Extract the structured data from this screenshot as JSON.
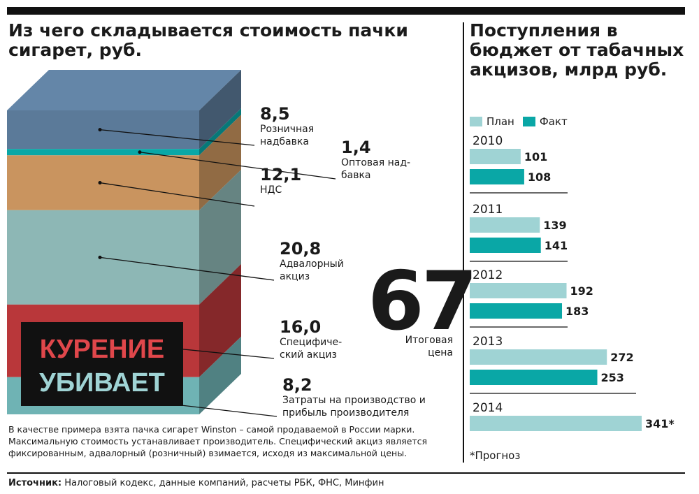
{
  "colors": {
    "plan": "#9fd3d4",
    "fact": "#0aa7a6",
    "text": "#1a1a1a"
  },
  "left": {
    "title": "Из чего складывается стоимость пачки сигарет, руб.",
    "warning_line1": "КУРЕНИЕ",
    "warning_line2": "УБИВАЕТ",
    "total_value": "67",
    "total_label": "Итоговая\nцена",
    "note": "В качестве примера взята пачка сигарет Winston – самой продаваемой в России марки. Максимальную стоимость устанавливает производитель. Специфический акциз является фиксированным, адвалорный (розничный) взимается, исходя из максимальной цены."
  },
  "right": {
    "title": "Поступления в бюджет от табачных акцизов, млрд руб.",
    "footnote": "*Прогноз"
  },
  "source_label": "Источник:",
  "source_text": "Налоговый кодекс, данные компаний, расчеты РБК, ФНС, Минфин",
  "chart_data": [
    {
      "type": "bar",
      "title": "Из чего складывается стоимость пачки сигарет, руб.",
      "orientation": "stacked-vertical",
      "total": 67,
      "segments": [
        {
          "name": "Розничная надбавка",
          "value": 8.5,
          "value_label": "8,5",
          "label": "Розничная\nнадбавка",
          "color": "#5b7a99"
        },
        {
          "name": "Оптовая надбавка",
          "value": 1.4,
          "value_label": "1,4",
          "label": "Оптовая над-\nбавка",
          "color": "#0aa7a6"
        },
        {
          "name": "НДС",
          "value": 12.1,
          "value_label": "12,1",
          "label": "НДС",
          "color": "#c9945f"
        },
        {
          "name": "Адвалорный акциз",
          "value": 20.8,
          "value_label": "20,8",
          "label": "Адвалорный\nакциз",
          "color": "#8db7b5"
        },
        {
          "name": "Специфический акциз",
          "value": 16.0,
          "value_label": "16,0",
          "label": "Специфиче-\nский акциз",
          "color": "#b9373a"
        },
        {
          "name": "Затраты на производство и прибыль производителя",
          "value": 8.2,
          "value_label": "8,2",
          "label": "Затраты на производство и\nприбыль производителя",
          "color": "#6fb3b4"
        }
      ]
    },
    {
      "type": "bar",
      "title": "Поступления в бюджет от табачных акцизов, млрд руб.",
      "orientation": "horizontal",
      "categories": [
        "2010",
        "2011",
        "2012",
        "2013",
        "2014"
      ],
      "series": [
        {
          "name": "План",
          "values": [
            101,
            139,
            192,
            272,
            341
          ],
          "labels": [
            "101",
            "139",
            "192",
            "272",
            "341*"
          ]
        },
        {
          "name": "Факт",
          "values": [
            108,
            141,
            183,
            253,
            null
          ],
          "labels": [
            "108",
            "141",
            "183",
            "253",
            ""
          ]
        }
      ]
    }
  ]
}
